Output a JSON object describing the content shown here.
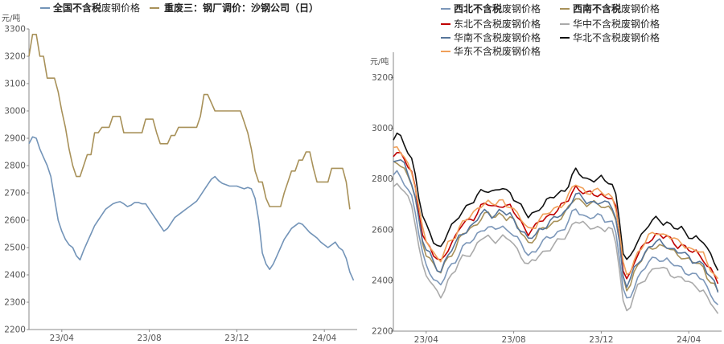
{
  "chart_data": [
    {
      "type": "line",
      "ylabel": "元/吨",
      "ylim": [
        2200,
        3300
      ],
      "yticks": [
        "2200",
        "2300",
        "2400",
        "2500",
        "2600",
        "2700",
        "2800",
        "2900",
        "3000",
        "3100",
        "3200",
        "3300"
      ],
      "xtick_labels": [
        "23/04",
        "23/08",
        "23/12",
        "24/04"
      ],
      "xlim": [
        0,
        90
      ],
      "xtick_pos": [
        9,
        33,
        57,
        81
      ],
      "grid": false,
      "legend": "top",
      "series": [
        {
          "name": "全国不含税废钢价格",
          "name_bold": "全国不含税",
          "name_rest": "废钢价格",
          "color": "#7394b8",
          "points": [
            [
              0,
              2880
            ],
            [
              1,
              2905
            ],
            [
              2,
              2900
            ],
            [
              3,
              2860
            ],
            [
              4,
              2830
            ],
            [
              5,
              2800
            ],
            [
              6,
              2760
            ],
            [
              7,
              2680
            ],
            [
              8,
              2600
            ],
            [
              9,
              2560
            ],
            [
              10,
              2530
            ],
            [
              11,
              2510
            ],
            [
              12,
              2500
            ],
            [
              13,
              2470
            ],
            [
              14,
              2455
            ],
            [
              15,
              2490
            ],
            [
              16,
              2520
            ],
            [
              17,
              2550
            ],
            [
              18,
              2580
            ],
            [
              19,
              2600
            ],
            [
              20,
              2620
            ],
            [
              21,
              2640
            ],
            [
              22,
              2650
            ],
            [
              23,
              2660
            ],
            [
              24,
              2665
            ],
            [
              25,
              2668
            ],
            [
              26,
              2660
            ],
            [
              27,
              2650
            ],
            [
              28,
              2655
            ],
            [
              29,
              2665
            ],
            [
              30,
              2665
            ],
            [
              31,
              2660
            ],
            [
              32,
              2660
            ],
            [
              33,
              2640
            ],
            [
              34,
              2620
            ],
            [
              35,
              2600
            ],
            [
              36,
              2580
            ],
            [
              37,
              2560
            ],
            [
              38,
              2570
            ],
            [
              39,
              2590
            ],
            [
              40,
              2610
            ],
            [
              41,
              2620
            ],
            [
              42,
              2630
            ],
            [
              43,
              2640
            ],
            [
              44,
              2650
            ],
            [
              45,
              2660
            ],
            [
              46,
              2670
            ],
            [
              47,
              2690
            ],
            [
              48,
              2710
            ],
            [
              49,
              2730
            ],
            [
              50,
              2750
            ],
            [
              51,
              2760
            ],
            [
              52,
              2745
            ],
            [
              53,
              2735
            ],
            [
              54,
              2730
            ],
            [
              55,
              2725
            ],
            [
              56,
              2725
            ],
            [
              57,
              2725
            ],
            [
              58,
              2720
            ],
            [
              59,
              2715
            ],
            [
              60,
              2720
            ],
            [
              61,
              2715
            ],
            [
              62,
              2680
            ],
            [
              63,
              2600
            ],
            [
              64,
              2480
            ],
            [
              65,
              2440
            ],
            [
              66,
              2420
            ],
            [
              67,
              2440
            ],
            [
              68,
              2470
            ],
            [
              69,
              2500
            ],
            [
              70,
              2530
            ],
            [
              71,
              2550
            ],
            [
              72,
              2570
            ],
            [
              73,
              2580
            ],
            [
              74,
              2590
            ],
            [
              75,
              2585
            ],
            [
              76,
              2570
            ],
            [
              77,
              2555
            ],
            [
              78,
              2545
            ],
            [
              79,
              2535
            ],
            [
              80,
              2520
            ],
            [
              81,
              2510
            ],
            [
              82,
              2500
            ],
            [
              83,
              2510
            ],
            [
              84,
              2520
            ],
            [
              85,
              2500
            ],
            [
              86,
              2490
            ],
            [
              87,
              2460
            ],
            [
              88,
              2410
            ],
            [
              89,
              2380
            ]
          ]
        },
        {
          "name": "重废三：钢厂调价：沙钢公司（日）",
          "color": "#a89159",
          "points": [
            [
              0,
              3200
            ],
            [
              1,
              3280
            ],
            [
              2,
              3280
            ],
            [
              3,
              3200
            ],
            [
              4,
              3200
            ],
            [
              5,
              3120
            ],
            [
              6,
              3120
            ],
            [
              7,
              3120
            ],
            [
              8,
              3070
            ],
            [
              9,
              3000
            ],
            [
              10,
              2940
            ],
            [
              11,
              2860
            ],
            [
              12,
              2800
            ],
            [
              13,
              2760
            ],
            [
              14,
              2760
            ],
            [
              15,
              2800
            ],
            [
              16,
              2840
            ],
            [
              17,
              2840
            ],
            [
              18,
              2920
            ],
            [
              19,
              2920
            ],
            [
              20,
              2940
            ],
            [
              21,
              2940
            ],
            [
              22,
              2940
            ],
            [
              23,
              2980
            ],
            [
              24,
              2980
            ],
            [
              25,
              2980
            ],
            [
              26,
              2920
            ],
            [
              27,
              2920
            ],
            [
              28,
              2920
            ],
            [
              29,
              2920
            ],
            [
              30,
              2920
            ],
            [
              31,
              2920
            ],
            [
              32,
              2970
            ],
            [
              33,
              2970
            ],
            [
              34,
              2970
            ],
            [
              35,
              2920
            ],
            [
              36,
              2880
            ],
            [
              37,
              2880
            ],
            [
              38,
              2880
            ],
            [
              39,
              2910
            ],
            [
              40,
              2910
            ],
            [
              41,
              2940
            ],
            [
              42,
              2940
            ],
            [
              43,
              2940
            ],
            [
              44,
              2940
            ],
            [
              45,
              2940
            ],
            [
              46,
              2940
            ],
            [
              47,
              2980
            ],
            [
              48,
              3060
            ],
            [
              49,
              3060
            ],
            [
              50,
              3030
            ],
            [
              51,
              3000
            ],
            [
              52,
              3000
            ],
            [
              53,
              3000
            ],
            [
              54,
              3000
            ],
            [
              55,
              3000
            ],
            [
              56,
              3000
            ],
            [
              57,
              3000
            ],
            [
              58,
              3000
            ],
            [
              59,
              2960
            ],
            [
              60,
              2920
            ],
            [
              61,
              2860
            ],
            [
              62,
              2780
            ],
            [
              63,
              2740
            ],
            [
              64,
              2740
            ],
            [
              65,
              2680
            ],
            [
              66,
              2650
            ],
            [
              67,
              2650
            ],
            [
              68,
              2650
            ],
            [
              69,
              2650
            ],
            [
              70,
              2700
            ],
            [
              71,
              2740
            ],
            [
              72,
              2780
            ],
            [
              73,
              2780
            ],
            [
              74,
              2820
            ],
            [
              75,
              2820
            ],
            [
              76,
              2850
            ],
            [
              77,
              2850
            ],
            [
              78,
              2790
            ],
            [
              79,
              2740
            ],
            [
              80,
              2740
            ],
            [
              81,
              2740
            ],
            [
              82,
              2740
            ],
            [
              83,
              2790
            ],
            [
              84,
              2790
            ],
            [
              85,
              2790
            ],
            [
              86,
              2790
            ],
            [
              87,
              2740
            ],
            [
              88,
              2640
            ]
          ]
        }
      ]
    },
    {
      "type": "line",
      "ylabel": "元/吨",
      "ylim": [
        2200,
        3300
      ],
      "yticks": [
        "2200",
        "2400",
        "2600",
        "2800",
        "3000",
        "3200"
      ],
      "xtick_labels": [
        "23/04",
        "23/08",
        "23/12",
        "24/04"
      ],
      "xlim": [
        0,
        90
      ],
      "xtick_pos": [
        9,
        33,
        57,
        81
      ],
      "grid": false,
      "legend": "top",
      "series": [
        {
          "name": "西北不含税废钢价格",
          "name_bold": "西北不含税",
          "name_rest": "废钢价格",
          "color": "#7c97b9",
          "offset": -60
        },
        {
          "name": "西南不含税废钢价格",
          "name_bold": "西南不含税",
          "name_rest": "废钢价格",
          "color": "#a89159",
          "offset": -10
        },
        {
          "name": "东北不含税废钢价格",
          "name_bold": "",
          "name_rest": "东北不含税废钢价格",
          "color": "#c00000",
          "offset": 30
        },
        {
          "name": "华中不含税废钢价格",
          "name_bold": "",
          "name_rest": "华中不含税废钢价格",
          "color": "#aaaaaa",
          "offset": -100
        },
        {
          "name": "华南不含税废钢价格",
          "name_bold": "",
          "name_rest": "华南不含税废钢价格",
          "color": "#56759a",
          "offset": 0
        },
        {
          "name": "华北不含税废钢价格",
          "name_bold": "",
          "name_rest": "华北不含税废钢价格",
          "color": "#111111",
          "offset": 90
        },
        {
          "name": "华东不含税废钢价格",
          "name_bold": "",
          "name_rest": "华东不含税废钢价格",
          "color": "#f0a05a",
          "offset": 40
        }
      ],
      "base": [
        [
          0,
          2870
        ],
        [
          1,
          2880
        ],
        [
          2,
          2870
        ],
        [
          3,
          2850
        ],
        [
          4,
          2820
        ],
        [
          5,
          2790
        ],
        [
          6,
          2730
        ],
        [
          7,
          2640
        ],
        [
          8,
          2560
        ],
        [
          9,
          2520
        ],
        [
          10,
          2500
        ],
        [
          11,
          2470
        ],
        [
          12,
          2450
        ],
        [
          13,
          2440
        ],
        [
          14,
          2470
        ],
        [
          15,
          2500
        ],
        [
          16,
          2520
        ],
        [
          17,
          2540
        ],
        [
          18,
          2570
        ],
        [
          19,
          2590
        ],
        [
          20,
          2600
        ],
        [
          21,
          2610
        ],
        [
          22,
          2620
        ],
        [
          23,
          2640
        ],
        [
          24,
          2660
        ],
        [
          25,
          2670
        ],
        [
          26,
          2670
        ],
        [
          27,
          2660
        ],
        [
          28,
          2660
        ],
        [
          29,
          2670
        ],
        [
          30,
          2670
        ],
        [
          31,
          2660
        ],
        [
          32,
          2660
        ],
        [
          33,
          2640
        ],
        [
          34,
          2620
        ],
        [
          35,
          2600
        ],
        [
          36,
          2580
        ],
        [
          37,
          2560
        ],
        [
          38,
          2570
        ],
        [
          39,
          2580
        ],
        [
          40,
          2600
        ],
        [
          41,
          2610
        ],
        [
          42,
          2620
        ],
        [
          43,
          2630
        ],
        [
          44,
          2640
        ],
        [
          45,
          2650
        ],
        [
          46,
          2660
        ],
        [
          47,
          2670
        ],
        [
          48,
          2690
        ],
        [
          49,
          2720
        ],
        [
          50,
          2740
        ],
        [
          51,
          2730
        ],
        [
          52,
          2720
        ],
        [
          53,
          2710
        ],
        [
          54,
          2710
        ],
        [
          55,
          2710
        ],
        [
          56,
          2710
        ],
        [
          57,
          2710
        ],
        [
          58,
          2700
        ],
        [
          59,
          2700
        ],
        [
          60,
          2690
        ],
        [
          61,
          2650
        ],
        [
          62,
          2550
        ],
        [
          63,
          2420
        ],
        [
          64,
          2380
        ],
        [
          65,
          2400
        ],
        [
          66,
          2440
        ],
        [
          67,
          2470
        ],
        [
          68,
          2490
        ],
        [
          69,
          2510
        ],
        [
          70,
          2530
        ],
        [
          71,
          2540
        ],
        [
          72,
          2550
        ],
        [
          73,
          2550
        ],
        [
          74,
          2540
        ],
        [
          75,
          2540
        ],
        [
          76,
          2530
        ],
        [
          77,
          2520
        ],
        [
          78,
          2510
        ],
        [
          79,
          2510
        ],
        [
          80,
          2500
        ],
        [
          81,
          2490
        ],
        [
          82,
          2480
        ],
        [
          83,
          2480
        ],
        [
          84,
          2470
        ],
        [
          85,
          2460
        ],
        [
          86,
          2430
        ],
        [
          87,
          2410
        ],
        [
          88,
          2390
        ],
        [
          89,
          2360
        ]
      ]
    }
  ]
}
